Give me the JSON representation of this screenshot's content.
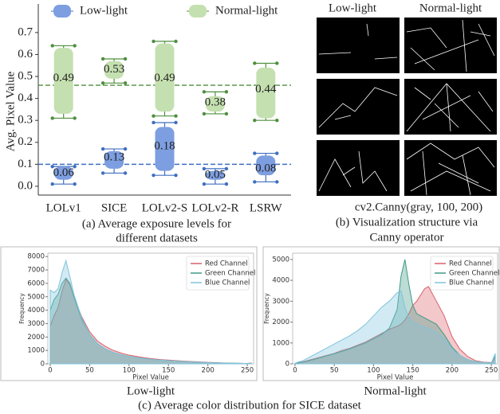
{
  "chart_data": [
    {
      "type": "box",
      "y_label": "Avg. Pixel Value",
      "caption": [
        "(a) Average exposure levels for",
        "different datasets"
      ],
      "categories": [
        "LOLv1",
        "SICE",
        "LOLv2-S",
        "LOLv2-R",
        "LSRW"
      ],
      "ylim": [
        -0.04,
        0.83
      ],
      "yticks": [
        {
          "value": 0,
          "label": "0.0"
        },
        0.1,
        0.2,
        0.3,
        0.4,
        0.5,
        0.6,
        0.7
      ],
      "legend": "upper center",
      "series": [
        {
          "name": "Low-light",
          "color": "#7d9ee0",
          "line_color": "#3f6fc0",
          "values": [
            0.06,
            0.13,
            0.18,
            0.05,
            0.08
          ],
          "box_low": [
            0.03,
            0.08,
            0.07,
            0.03,
            0.05
          ],
          "box_high": [
            0.09,
            0.16,
            0.27,
            0.07,
            0.14
          ],
          "whisker_low": [
            0.01,
            0.06,
            0.05,
            0.01,
            0.02
          ],
          "whisker_high": [
            0.09,
            0.17,
            0.29,
            0.08,
            0.15
          ],
          "mean_line": 0.1
        },
        {
          "name": "Normal-light",
          "color": "#c5e0b0",
          "line_color": "#4f8f3f",
          "values": [
            0.49,
            0.53,
            0.49,
            0.38,
            0.44
          ],
          "box_low": [
            0.33,
            0.49,
            0.34,
            0.34,
            0.31
          ],
          "box_high": [
            0.63,
            0.57,
            0.65,
            0.41,
            0.54
          ],
          "whisker_low": [
            0.31,
            0.47,
            0.32,
            0.33,
            0.3
          ],
          "whisker_high": [
            0.64,
            0.58,
            0.66,
            0.43,
            0.56
          ],
          "mean_line": 0.46
        }
      ]
    },
    {
      "type": "area",
      "title": "Low-light",
      "x_label": "Pixel Value",
      "y_label": "Frequency",
      "xlim": [
        -3,
        258
      ],
      "ylim": [
        0,
        8250
      ],
      "xticks": [
        0,
        50,
        100,
        150,
        200,
        250
      ],
      "yticks": [
        0,
        1000,
        2000,
        3000,
        4000,
        5000,
        6000,
        7000,
        8000
      ],
      "legend": "upper right",
      "x": [
        0,
        5,
        10,
        15,
        20,
        25,
        30,
        40,
        50,
        60,
        70,
        80,
        90,
        100,
        110,
        120,
        130,
        135,
        140,
        145,
        150,
        155,
        160,
        165,
        170,
        180,
        190,
        200,
        210,
        220,
        230,
        240,
        250,
        255
      ],
      "series": [
        {
          "name": "Red Channel",
          "color": "#d9606b",
          "values": [
            2800,
            3600,
            4200,
            5400,
            6300,
            5900,
            5000,
            3500,
            2400,
            1700,
            1300,
            1000,
            800,
            650,
            550,
            450,
            380,
            350,
            320,
            300,
            280,
            260,
            240,
            220,
            200,
            170,
            140,
            110,
            90,
            70,
            55,
            40,
            30,
            60
          ]
        },
        {
          "name": "Green Channel",
          "color": "#3f9a88",
          "values": [
            4000,
            4800,
            5200,
            6000,
            6400,
            6000,
            5000,
            3300,
            2200,
            1500,
            1100,
            850,
            680,
            560,
            470,
            390,
            330,
            300,
            280,
            260,
            240,
            220,
            200,
            190,
            170,
            140,
            110,
            90,
            70,
            55,
            45,
            35,
            25,
            50
          ]
        },
        {
          "name": "Blue Channel",
          "color": "#7fc4dc",
          "values": [
            5500,
            5300,
            5600,
            6800,
            7700,
            6500,
            5200,
            3400,
            2200,
            1500,
            1100,
            850,
            680,
            560,
            470,
            390,
            330,
            300,
            280,
            260,
            240,
            220,
            200,
            190,
            170,
            140,
            110,
            90,
            70,
            55,
            45,
            35,
            25,
            50
          ]
        }
      ]
    },
    {
      "type": "area",
      "title": "Normal-light",
      "x_label": "Pixel Value",
      "y_label": "Frequency",
      "xlim": [
        -3,
        258
      ],
      "ylim": [
        0,
        5300
      ],
      "xticks": [
        0,
        50,
        100,
        150,
        200,
        250
      ],
      "yticks": [
        0,
        1000,
        2000,
        3000,
        4000,
        5000
      ],
      "legend": "upper right",
      "x": [
        0,
        5,
        10,
        15,
        20,
        25,
        30,
        40,
        50,
        60,
        70,
        80,
        90,
        100,
        110,
        120,
        130,
        135,
        140,
        145,
        150,
        155,
        160,
        165,
        170,
        180,
        190,
        200,
        210,
        220,
        230,
        240,
        250,
        255
      ],
      "series": [
        {
          "name": "Red Channel",
          "color": "#d9606b",
          "values": [
            20,
            60,
            100,
            150,
            200,
            250,
            300,
            400,
            500,
            650,
            750,
            900,
            1050,
            1250,
            1450,
            1650,
            1800,
            1900,
            2100,
            2400,
            2800,
            3000,
            3300,
            3600,
            3700,
            3000,
            2300,
            1300,
            700,
            350,
            150,
            80,
            60,
            300
          ]
        },
        {
          "name": "Green Channel",
          "color": "#3f9a88",
          "values": [
            20,
            50,
            80,
            120,
            170,
            220,
            270,
            380,
            480,
            600,
            720,
            860,
            1000,
            1200,
            1400,
            1700,
            2600,
            4200,
            5000,
            3800,
            2800,
            2400,
            2300,
            2200,
            2100,
            1900,
            1400,
            800,
            400,
            200,
            100,
            60,
            40,
            400
          ]
        },
        {
          "name": "Blue Channel",
          "color": "#7fc4dc",
          "values": [
            30,
            100,
            150,
            250,
            350,
            450,
            550,
            750,
            950,
            1150,
            1350,
            1600,
            1900,
            2300,
            2700,
            3000,
            3400,
            3500,
            2700,
            2200,
            2000,
            1900,
            1800,
            1750,
            1700,
            1500,
            1200,
            700,
            400,
            200,
            100,
            60,
            40,
            500
          ]
        }
      ]
    }
  ],
  "panel_b": {
    "column_labels": [
      "Low-light",
      "Normal-light"
    ],
    "code": "cv2.Canny(gray, 100, 200)",
    "caption": [
      "(b) Visualization structure via",
      "Canny operator"
    ]
  },
  "panel_c": {
    "caption": "(c) Average color distribution for SICE dataset"
  }
}
